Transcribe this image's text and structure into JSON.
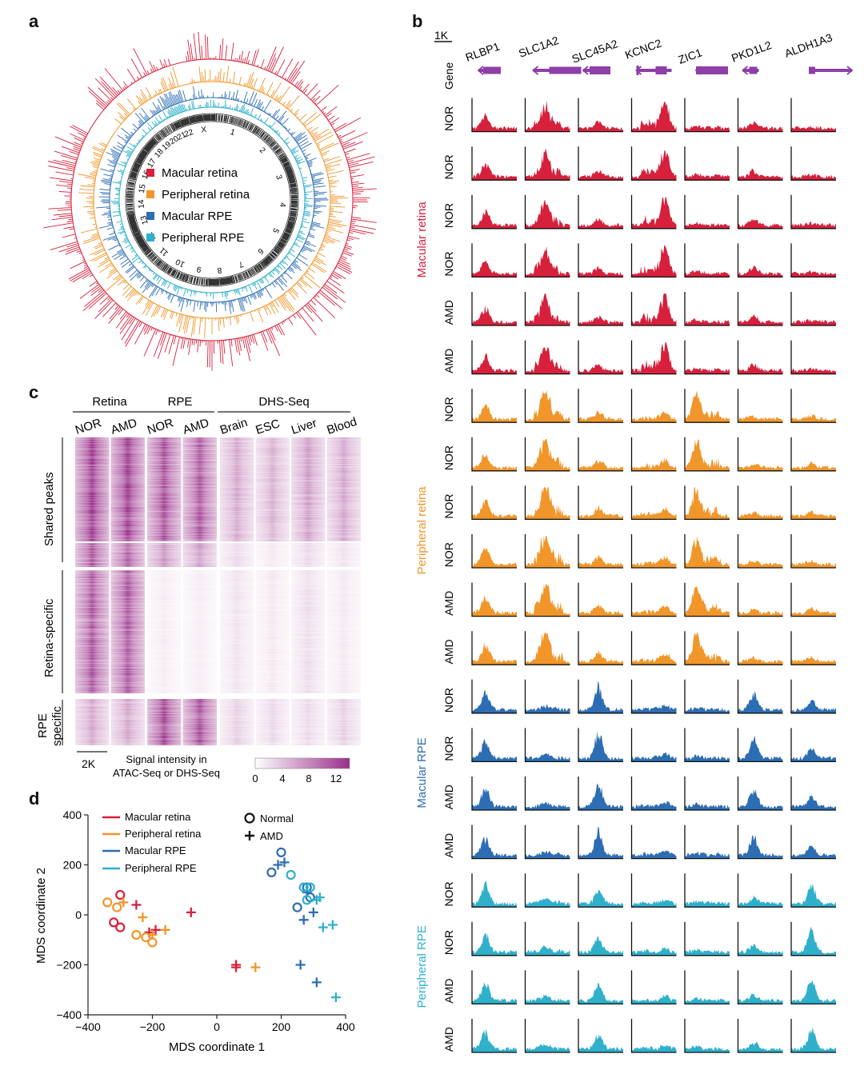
{
  "panels": {
    "a": "a",
    "b": "b",
    "c": "c",
    "d": "d"
  },
  "panel_a": {
    "legend": [
      {
        "label": "Macular retina",
        "color": "#d6203c"
      },
      {
        "label": "Peripheral retina",
        "color": "#f0962a"
      },
      {
        "label": "Macular RPE",
        "color": "#2d6db3"
      },
      {
        "label": "Peripheral RPE",
        "color": "#2fb0cb"
      }
    ],
    "chromosomes": [
      "1",
      "2",
      "3",
      "4",
      "5",
      "6",
      "7",
      "8",
      "9",
      "10",
      "11",
      "12",
      "13",
      "14",
      "15",
      "16",
      "17",
      "18",
      "19",
      "20",
      "21",
      "22",
      "X"
    ]
  },
  "panel_b": {
    "scale_label": "1K",
    "gene_row_label": "Gene",
    "genes": [
      "RLBP1",
      "SLC1A2",
      "SLC45A2",
      "KCNC2",
      "ZIC1",
      "PKD1L2",
      "ALDH1A3"
    ],
    "groups": [
      {
        "name": "Macular retina",
        "color": "#d6203c",
        "rows": [
          "NOR",
          "NOR",
          "NOR",
          "NOR",
          "AMD",
          "AMD"
        ]
      },
      {
        "name": "Peripheral retina",
        "color": "#f0962a",
        "rows": [
          "NOR",
          "NOR",
          "NOR",
          "NOR",
          "AMD",
          "AMD"
        ]
      },
      {
        "name": "Macular RPE",
        "color": "#2d6db3",
        "rows": [
          "NOR",
          "NOR",
          "AMD",
          "AMD"
        ]
      },
      {
        "name": "Peripheral RPE",
        "color": "#2fb0cb",
        "rows": [
          "NOR",
          "NOR",
          "AMD",
          "AMD"
        ]
      }
    ],
    "gene_color": "#8e3fa8"
  },
  "panel_c": {
    "top_groups": [
      "Retina",
      "RPE",
      "DHS-Seq"
    ],
    "columns": [
      "NOR",
      "AMD",
      "NOR",
      "AMD",
      "Brain",
      "ESC",
      "Liver",
      "Blood"
    ],
    "row_groups": [
      "Shared peaks",
      "Retina-specific",
      "RPE",
      "specific"
    ],
    "scale_label": "2K",
    "colorbar_title_1": "Signal intensity in",
    "colorbar_title_2": "ATAC-Seq or DHS-Seq",
    "colorbar_ticks": [
      "0",
      "4",
      "8",
      "12"
    ],
    "colorbar_colors": [
      "#ffffff",
      "#9a2f8a"
    ]
  },
  "chart_data": {
    "type": "scatter",
    "xlabel": "MDS coordinate 1",
    "ylabel": "MDS coordinate 2",
    "xlim": [
      -400,
      400
    ],
    "ylim": [
      -400,
      400
    ],
    "xticks": [
      "−400",
      "−200",
      "0",
      "200",
      "400"
    ],
    "yticks": [
      "400",
      "200",
      "0",
      "−200",
      "−400"
    ],
    "marker_legend": [
      {
        "label": "Normal",
        "marker": "circle"
      },
      {
        "label": "AMD",
        "marker": "plus"
      }
    ],
    "series": [
      {
        "name": "Macular retina",
        "color": "#d6203c",
        "normal": [
          [
            -300,
            80
          ],
          [
            -320,
            -30
          ],
          [
            -300,
            -50
          ]
        ],
        "amd": [
          [
            -250,
            40
          ],
          [
            -210,
            -70
          ],
          [
            -80,
            10
          ],
          [
            -190,
            -60
          ],
          [
            60,
            -200
          ],
          [
            60,
            -210
          ]
        ]
      },
      {
        "name": "Peripheral retina",
        "color": "#f0962a",
        "normal": [
          [
            -340,
            50
          ],
          [
            -310,
            30
          ],
          [
            -250,
            -80
          ],
          [
            -220,
            -90
          ],
          [
            -200,
            -110
          ]
        ],
        "amd": [
          [
            -290,
            50
          ],
          [
            -230,
            -10
          ],
          [
            -200,
            -80
          ],
          [
            -160,
            -60
          ],
          [
            120,
            -210
          ]
        ]
      },
      {
        "name": "Macular RPE",
        "color": "#2d6db3",
        "normal": [
          [
            200,
            250
          ],
          [
            170,
            170
          ],
          [
            250,
            30
          ],
          [
            280,
            110
          ],
          [
            290,
            70
          ]
        ],
        "amd": [
          [
            210,
            210
          ],
          [
            190,
            200
          ],
          [
            280,
            90
          ],
          [
            270,
            -20
          ],
          [
            300,
            10
          ],
          [
            260,
            -200
          ],
          [
            310,
            -270
          ]
        ]
      },
      {
        "name": "Peripheral RPE",
        "color": "#2fb0cb",
        "normal": [
          [
            230,
            160
          ],
          [
            270,
            110
          ],
          [
            290,
            110
          ],
          [
            280,
            60
          ]
        ],
        "amd": [
          [
            310,
            60
          ],
          [
            320,
            70
          ],
          [
            330,
            -50
          ],
          [
            360,
            -40
          ],
          [
            370,
            -330
          ]
        ]
      }
    ]
  }
}
